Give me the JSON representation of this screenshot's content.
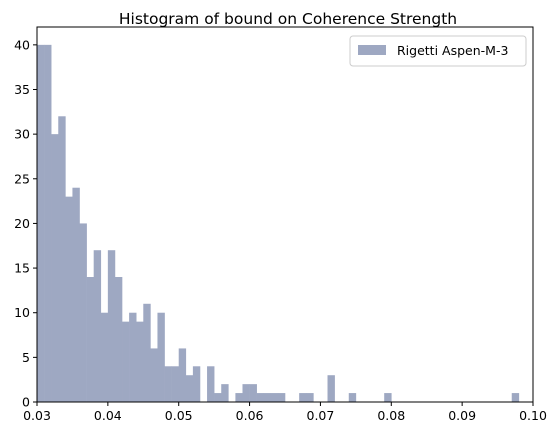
{
  "chart_data": {
    "type": "bar",
    "title": "Histogram of bound on Coherence Strength",
    "xlabel": "",
    "ylabel": "",
    "xlim": [
      0.03,
      0.1
    ],
    "ylim": [
      0,
      42
    ],
    "bin_width": 0.001,
    "x_ticks": [
      "0.03",
      "0.04",
      "0.05",
      "0.06",
      "0.07",
      "0.08",
      "0.09",
      "0.10"
    ],
    "x_tick_values": [
      0.03,
      0.04,
      0.05,
      0.06,
      0.07,
      0.08,
      0.09,
      0.1
    ],
    "y_ticks": [
      "0",
      "5",
      "10",
      "15",
      "20",
      "25",
      "30",
      "35",
      "40"
    ],
    "y_tick_values": [
      0,
      5,
      10,
      15,
      20,
      25,
      30,
      35,
      40
    ],
    "grid": false,
    "legend_position": "top-right",
    "series": [
      {
        "name": "Rigetti Aspen-M-3",
        "color": "#9ea8c2",
        "bins": [
          {
            "x": 0.03,
            "count": 40
          },
          {
            "x": 0.031,
            "count": 40
          },
          {
            "x": 0.032,
            "count": 30
          },
          {
            "x": 0.033,
            "count": 32
          },
          {
            "x": 0.034,
            "count": 23
          },
          {
            "x": 0.035,
            "count": 24
          },
          {
            "x": 0.036,
            "count": 20
          },
          {
            "x": 0.037,
            "count": 14
          },
          {
            "x": 0.038,
            "count": 17
          },
          {
            "x": 0.039,
            "count": 10
          },
          {
            "x": 0.04,
            "count": 17
          },
          {
            "x": 0.041,
            "count": 14
          },
          {
            "x": 0.042,
            "count": 9
          },
          {
            "x": 0.043,
            "count": 10
          },
          {
            "x": 0.044,
            "count": 9
          },
          {
            "x": 0.045,
            "count": 11
          },
          {
            "x": 0.046,
            "count": 6
          },
          {
            "x": 0.047,
            "count": 10
          },
          {
            "x": 0.048,
            "count": 4
          },
          {
            "x": 0.049,
            "count": 4
          },
          {
            "x": 0.05,
            "count": 6
          },
          {
            "x": 0.051,
            "count": 3
          },
          {
            "x": 0.052,
            "count": 4
          },
          {
            "x": 0.054,
            "count": 4
          },
          {
            "x": 0.055,
            "count": 1
          },
          {
            "x": 0.056,
            "count": 2
          },
          {
            "x": 0.058,
            "count": 1
          },
          {
            "x": 0.059,
            "count": 2
          },
          {
            "x": 0.06,
            "count": 2
          },
          {
            "x": 0.061,
            "count": 1
          },
          {
            "x": 0.062,
            "count": 1
          },
          {
            "x": 0.063,
            "count": 1
          },
          {
            "x": 0.064,
            "count": 1
          },
          {
            "x": 0.067,
            "count": 1
          },
          {
            "x": 0.068,
            "count": 1
          },
          {
            "x": 0.071,
            "count": 3
          },
          {
            "x": 0.074,
            "count": 1
          },
          {
            "x": 0.079,
            "count": 1
          },
          {
            "x": 0.097,
            "count": 1
          }
        ]
      }
    ]
  }
}
